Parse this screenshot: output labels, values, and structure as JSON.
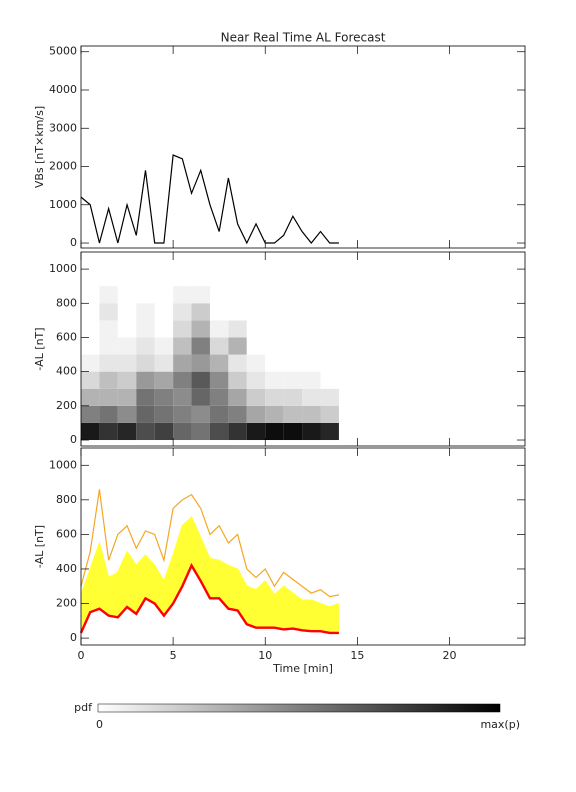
{
  "chart_data": [
    {
      "type": "line",
      "title": "Near Real Time AL Forecast",
      "ylabel": "VBs [nT×km/s]",
      "xlim": [
        0,
        24.1
      ],
      "xticks": [
        0,
        5,
        10,
        15,
        20
      ],
      "ylim": [
        -130,
        5150
      ],
      "yticks": [
        0,
        1000,
        2000,
        3000,
        4000,
        5000
      ],
      "x": [
        0,
        0.5,
        1,
        1.5,
        2,
        2.5,
        3,
        3.5,
        4,
        4.5,
        5,
        5.5,
        6,
        6.5,
        7,
        7.5,
        8,
        8.5,
        9,
        9.5,
        10,
        10.5,
        11,
        11.5,
        12,
        12.5,
        13,
        13.5,
        14
      ],
      "series": [
        {
          "color": "#000000",
          "values": [
            1200,
            1000,
            0,
            900,
            0,
            1000,
            200,
            1900,
            0,
            0,
            2300,
            2200,
            1300,
            1900,
            1000,
            300,
            1700,
            500,
            0,
            500,
            0,
            0,
            200,
            700,
            300,
            0,
            300,
            0,
            0
          ]
        }
      ]
    },
    {
      "type": "heatmap",
      "ylabel": "-AL [nT]",
      "xlim": [
        0,
        24.1
      ],
      "xticks": [
        0,
        5,
        10,
        15,
        20
      ],
      "ylim": [
        -35,
        1100
      ],
      "yticks": [
        0,
        200,
        400,
        600,
        800,
        1000
      ],
      "x_bins": [
        0,
        1,
        2,
        3,
        4,
        5,
        6,
        7,
        8,
        9,
        10,
        11,
        12,
        13,
        14
      ],
      "y_bins": [
        0,
        100,
        200,
        300,
        400,
        500,
        600,
        700,
        800,
        900
      ],
      "z": [
        [
          0.9,
          0.8,
          0.85,
          0.7,
          0.75,
          0.6,
          0.55,
          0.7,
          0.8,
          0.9,
          0.95,
          0.95,
          0.9,
          0.85
        ],
        [
          0.5,
          0.55,
          0.45,
          0.6,
          0.55,
          0.5,
          0.45,
          0.55,
          0.5,
          0.35,
          0.3,
          0.25,
          0.25,
          0.2
        ],
        [
          0.3,
          0.3,
          0.3,
          0.55,
          0.5,
          0.45,
          0.6,
          0.5,
          0.35,
          0.2,
          0.15,
          0.15,
          0.1,
          0.1
        ],
        [
          0.15,
          0.25,
          0.2,
          0.4,
          0.35,
          0.5,
          0.65,
          0.45,
          0.2,
          0.1,
          0.05,
          0.05,
          0.05,
          0
        ],
        [
          0.05,
          0.1,
          0.1,
          0.15,
          0.1,
          0.35,
          0.4,
          0.3,
          0.1,
          0.05,
          0,
          0,
          0,
          0
        ],
        [
          0,
          0.05,
          0.05,
          0.1,
          0.05,
          0.25,
          0.5,
          0.15,
          0.3,
          0,
          0,
          0,
          0,
          0
        ],
        [
          0,
          0.05,
          0,
          0.05,
          0,
          0.15,
          0.3,
          0.05,
          0.1,
          0,
          0,
          0,
          0,
          0
        ],
        [
          0,
          0.1,
          0,
          0.05,
          0,
          0.1,
          0.2,
          0,
          0,
          0,
          0,
          0,
          0,
          0
        ],
        [
          0,
          0.05,
          0,
          0,
          0,
          0.05,
          0.05,
          0,
          0,
          0,
          0,
          0,
          0,
          0
        ]
      ],
      "colorbar": {
        "label": "pdf",
        "min_label": "0",
        "max_label": "max(p)"
      }
    },
    {
      "type": "line",
      "ylabel": "-AL [nT]",
      "xlabel": "Time [min]",
      "xlim": [
        0,
        24.1
      ],
      "xticks": [
        0,
        5,
        10,
        15,
        20
      ],
      "ylim": [
        -40,
        1100
      ],
      "yticks": [
        0,
        200,
        400,
        600,
        800,
        1000
      ],
      "x": [
        0,
        0.5,
        1,
        1.5,
        2,
        2.5,
        3,
        3.5,
        4,
        4.5,
        5,
        5.5,
        6,
        6.5,
        7,
        7.5,
        8,
        8.5,
        9,
        9.5,
        10,
        10.5,
        11,
        11.5,
        12,
        12.5,
        13,
        13.5,
        14
      ],
      "fill_between": [
        1,
        2
      ],
      "series": [
        {
          "color": "#f5a623",
          "values": [
            300,
            500,
            860,
            450,
            600,
            650,
            520,
            620,
            600,
            450,
            750,
            800,
            830,
            750,
            600,
            650,
            550,
            600,
            400,
            350,
            400,
            300,
            380,
            340,
            300,
            260,
            280,
            240,
            250
          ]
        },
        {
          "color": "#ffff33",
          "values": [
            250,
            400,
            550,
            350,
            380,
            500,
            420,
            480,
            420,
            330,
            480,
            650,
            700,
            580,
            460,
            450,
            420,
            400,
            300,
            280,
            330,
            250,
            300,
            260,
            220,
            220,
            200,
            180,
            200
          ]
        },
        {
          "color": "#ff0000",
          "values": [
            30,
            150,
            170,
            130,
            120,
            180,
            140,
            230,
            200,
            130,
            200,
            300,
            420,
            330,
            230,
            230,
            170,
            160,
            80,
            60,
            60,
            60,
            50,
            55,
            45,
            40,
            40,
            30,
            30
          ]
        }
      ]
    }
  ]
}
